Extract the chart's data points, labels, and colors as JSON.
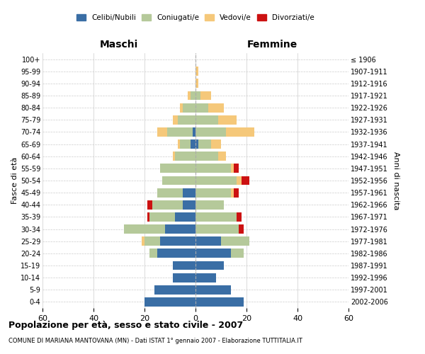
{
  "age_groups": [
    "0-4",
    "5-9",
    "10-14",
    "15-19",
    "20-24",
    "25-29",
    "30-34",
    "35-39",
    "40-44",
    "45-49",
    "50-54",
    "55-59",
    "60-64",
    "65-69",
    "70-74",
    "75-79",
    "80-84",
    "85-89",
    "90-94",
    "95-99",
    "100+"
  ],
  "birth_years": [
    "2002-2006",
    "1997-2001",
    "1992-1996",
    "1987-1991",
    "1982-1986",
    "1977-1981",
    "1972-1976",
    "1967-1971",
    "1962-1966",
    "1957-1961",
    "1952-1956",
    "1947-1951",
    "1942-1946",
    "1937-1941",
    "1932-1936",
    "1927-1931",
    "1922-1926",
    "1917-1921",
    "1912-1916",
    "1907-1911",
    "≤ 1906"
  ],
  "males": {
    "celibi": [
      20,
      16,
      9,
      9,
      15,
      14,
      12,
      8,
      5,
      5,
      0,
      0,
      0,
      2,
      1,
      0,
      0,
      0,
      0,
      0,
      0
    ],
    "coniugati": [
      0,
      0,
      0,
      0,
      3,
      6,
      16,
      10,
      12,
      10,
      13,
      14,
      8,
      4,
      10,
      7,
      5,
      2,
      0,
      0,
      0
    ],
    "vedovi": [
      0,
      0,
      0,
      0,
      0,
      1,
      0,
      0,
      0,
      0,
      0,
      0,
      1,
      1,
      4,
      2,
      1,
      1,
      0,
      0,
      0
    ],
    "divorziati": [
      0,
      0,
      0,
      0,
      0,
      0,
      0,
      1,
      2,
      0,
      0,
      0,
      0,
      0,
      0,
      0,
      0,
      0,
      0,
      0,
      0
    ]
  },
  "females": {
    "nubili": [
      19,
      14,
      8,
      11,
      14,
      10,
      0,
      0,
      0,
      0,
      0,
      0,
      0,
      1,
      0,
      0,
      0,
      0,
      0,
      0,
      0
    ],
    "coniugate": [
      0,
      0,
      0,
      0,
      5,
      11,
      17,
      16,
      11,
      14,
      16,
      14,
      9,
      5,
      12,
      9,
      5,
      2,
      0,
      0,
      0
    ],
    "vedove": [
      0,
      0,
      0,
      0,
      0,
      0,
      0,
      0,
      0,
      1,
      2,
      1,
      3,
      4,
      11,
      7,
      6,
      4,
      1,
      1,
      0
    ],
    "divorziate": [
      0,
      0,
      0,
      0,
      0,
      0,
      2,
      2,
      0,
      2,
      3,
      2,
      0,
      0,
      0,
      0,
      0,
      0,
      0,
      0,
      0
    ]
  },
  "colors": {
    "celibi": "#3a6ea5",
    "coniugati": "#b5c99a",
    "vedovi": "#f5c87a",
    "divorziati": "#cc1111"
  },
  "xlim": 60,
  "title": "Popolazione per età, sesso e stato civile - 2007",
  "subtitle": "COMUNE DI MARIANA MANTOVANA (MN) - Dati ISTAT 1° gennaio 2007 - Elaborazione TUTTITALIA.IT",
  "xlabel_left": "Maschi",
  "xlabel_right": "Femmine",
  "ylabel": "Fasce di età",
  "ylabel_right": "Anni di nascita",
  "legend_labels": [
    "Celibi/Nubili",
    "Coniugati/e",
    "Vedovi/e",
    "Divorziati/e"
  ]
}
